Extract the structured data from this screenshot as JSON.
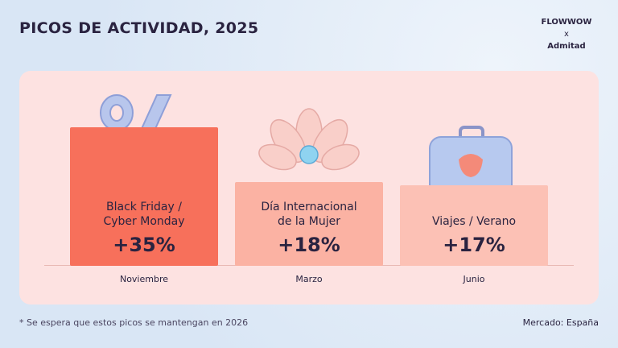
{
  "brand": {
    "left": "FLOWWOW",
    "joiner": "x",
    "right": "Admitad"
  },
  "chart_data": {
    "type": "bar",
    "title": "PICOS DE ACTIVIDAD, 2025",
    "categories": [
      "Black Friday /\nCyber Monday",
      "Día Internacional\nde la Mujer",
      "Viajes / Verano"
    ],
    "values": [
      35,
      18,
      17
    ],
    "value_labels": [
      "+35%",
      "+18%",
      "+17%"
    ],
    "months": [
      "Noviembre",
      "Marzo",
      "Junio"
    ],
    "colors": [
      "#f7705b",
      "#fbb2a3",
      "#fcc1b5"
    ]
  },
  "footnote": "* Se espera que estos picos se mantengan en 2026",
  "market": "Mercado: España"
}
